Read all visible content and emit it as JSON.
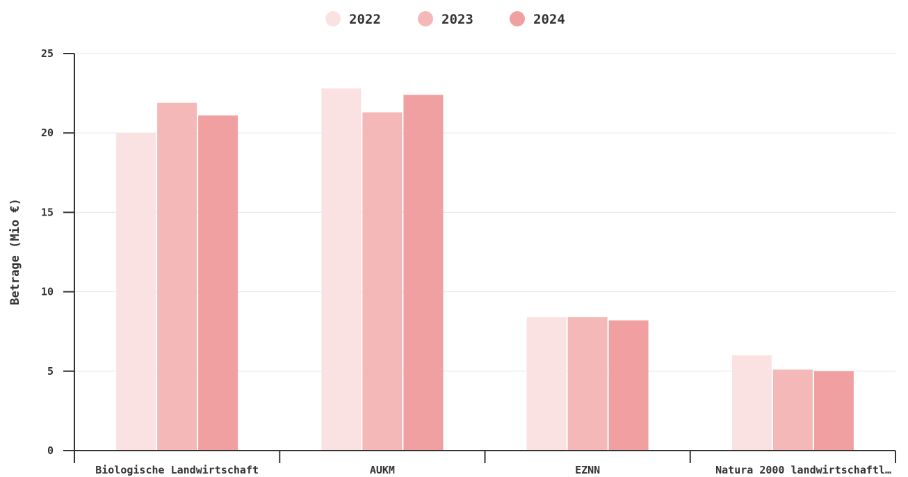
{
  "chart_data": {
    "type": "bar",
    "categories": [
      "Biologische Landwirtschaft",
      "AUKM",
      "EZNN",
      "Natura 2000 landwirtschaftl…"
    ],
    "series": [
      {
        "name": "2022",
        "color": "#fbe2e2",
        "values": [
          20.0,
          22.8,
          8.4,
          6.0
        ]
      },
      {
        "name": "2023",
        "color": "#f4b8b9",
        "values": [
          21.9,
          21.3,
          8.4,
          5.1
        ]
      },
      {
        "name": "2024",
        "color": "#f1a0a2",
        "values": [
          21.1,
          22.4,
          8.2,
          5.0
        ]
      }
    ],
    "title": "",
    "xlabel": "",
    "ylabel": "Betrage (Mio €)",
    "ylim": [
      0,
      25
    ],
    "yticks": [
      0,
      5,
      10,
      15,
      20,
      25
    ],
    "ytick_labels": [
      "0",
      "5",
      "10",
      "15",
      "20",
      "25"
    ],
    "grid": true,
    "legend_position": "top-center"
  }
}
